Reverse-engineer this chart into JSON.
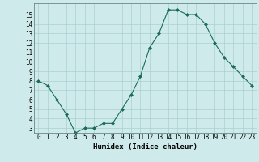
{
  "x": [
    0,
    1,
    2,
    3,
    4,
    5,
    6,
    7,
    8,
    9,
    10,
    11,
    12,
    13,
    14,
    15,
    16,
    17,
    18,
    19,
    20,
    21,
    22,
    23
  ],
  "y": [
    8.0,
    7.5,
    6.0,
    4.5,
    2.5,
    3.0,
    3.0,
    3.5,
    3.5,
    5.0,
    6.5,
    8.5,
    11.5,
    13.0,
    15.5,
    15.5,
    15.0,
    15.0,
    14.0,
    12.0,
    10.5,
    9.5,
    8.5,
    7.5
  ],
  "xlabel": "Humidex (Indice chaleur)",
  "xlim": [
    -0.5,
    23.5
  ],
  "ylim": [
    2.5,
    16.2
  ],
  "yticks": [
    3,
    4,
    5,
    6,
    7,
    8,
    9,
    10,
    11,
    12,
    13,
    14,
    15
  ],
  "xticks": [
    0,
    1,
    2,
    3,
    4,
    5,
    6,
    7,
    8,
    9,
    10,
    11,
    12,
    13,
    14,
    15,
    16,
    17,
    18,
    19,
    20,
    21,
    22,
    23
  ],
  "line_color": "#1a6b5a",
  "marker_color": "#1a6b5a",
  "bg_color": "#ceeaea",
  "grid_color": "#aacfcf",
  "label_fontsize": 6.5,
  "tick_fontsize": 5.5
}
